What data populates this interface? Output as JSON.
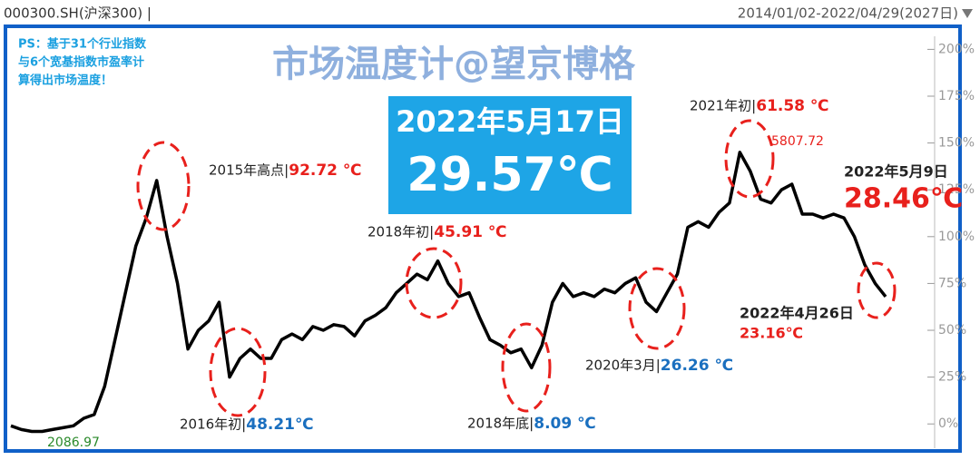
{
  "header": {
    "symbol": "000300.SH(沪深300) |",
    "range": "2014/01/02-2022/04/29(2027日)"
  },
  "chart_data": {
    "type": "line",
    "title": "市场温度计@望京博格",
    "note": [
      "PS：基于31个行业指数",
      "与6个宽基指数市盈率计",
      "算得出市场温度！"
    ],
    "highlight": {
      "date": "2022年5月17日",
      "temp": "29.57℃"
    },
    "color": "#000000",
    "values": [
      -1,
      -3,
      -4,
      -4,
      -3,
      -2,
      -1,
      3,
      5,
      20,
      45,
      70,
      95,
      110,
      130,
      100,
      75,
      40,
      50,
      55,
      65,
      25,
      35,
      40,
      35,
      35,
      45,
      48,
      45,
      52,
      50,
      53,
      52,
      47,
      55,
      58,
      62,
      70,
      75,
      80,
      77,
      87,
      75,
      68,
      70,
      57,
      45,
      42,
      38,
      40,
      30,
      42,
      65,
      75,
      68,
      70,
      68,
      72,
      70,
      75,
      78,
      65,
      60,
      70,
      80,
      105,
      108,
      105,
      113,
      118,
      145,
      135,
      120,
      118,
      125,
      128,
      112,
      112,
      110,
      112,
      110,
      100,
      85,
      75,
      68
    ],
    "ylim": [
      -12,
      206
    ],
    "yticks": [
      {
        "value": 0,
        "label": "0%"
      },
      {
        "value": 25,
        "label": "25%"
      },
      {
        "value": 50,
        "label": "50%"
      },
      {
        "value": 75,
        "label": "75%"
      },
      {
        "value": 100,
        "label": "100%"
      },
      {
        "value": 125,
        "label": "125%"
      },
      {
        "value": 150,
        "label": "150%"
      },
      {
        "value": 175,
        "label": "175%"
      },
      {
        "value": 200,
        "label": "200%"
      }
    ],
    "annotations": [
      {
        "text": "2015年高点|",
        "temp": "92.72 ℃",
        "color": "#e8201c"
      },
      {
        "text": "2016年初|",
        "temp": "48.21℃",
        "color": "#1a6fbf"
      },
      {
        "text": "2018年初|",
        "temp": "45.91 ℃",
        "color": "#e8201c"
      },
      {
        "text": "2018年底|",
        "temp": "8.09 ℃",
        "color": "#1a6fbf"
      },
      {
        "text": "2020年3月|",
        "temp": "26.26 ℃",
        "color": "#1a6fbf"
      },
      {
        "text": "2021年初|",
        "temp": "61.58 ℃",
        "color": "#e8201c"
      },
      {
        "text": "2022年5月9日",
        "temp": "28.46℃",
        "color": "#e8201c"
      },
      {
        "text": "2022年4月26日",
        "temp": "23.16℃",
        "color": "#e8201c"
      }
    ],
    "max_label": "5807.72",
    "min_label": "2086.97"
  }
}
